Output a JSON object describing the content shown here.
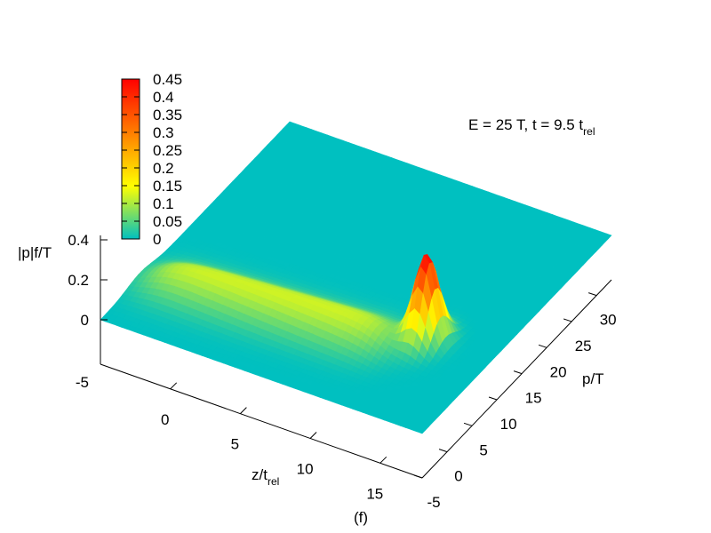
{
  "chart_data": {
    "type": "surface",
    "annotation": {
      "main": "E = 25 T, t = 9.5 t",
      "sub": "rel"
    },
    "panel_label": "(f)",
    "zlabel": "|p|f/T",
    "xlabel": {
      "main": "z/t",
      "sub": "rel"
    },
    "ylabel": "p/T",
    "xlim": [
      -5,
      18
    ],
    "ylim": [
      -5,
      33
    ],
    "zlim": [
      -5,
      0.45
    ],
    "x_ticks": [
      0,
      5,
      10,
      15
    ],
    "x_tick_labels": [
      "0",
      "5",
      "10",
      "15"
    ],
    "y_ticks": [
      -5,
      0,
      5,
      10,
      15,
      20,
      25,
      30
    ],
    "y_tick_labels": [
      "-5",
      "0",
      "5",
      "10",
      "15",
      "20",
      "25",
      "30"
    ],
    "z_ticks": [
      0,
      0.2,
      0.4
    ],
    "z_tick_labels": [
      "0",
      "0.2",
      "0.4"
    ],
    "z_floor_label": "-5",
    "colorbar": {
      "range": [
        0,
        0.45
      ],
      "ticks": [
        "0",
        "0.05",
        "0.1",
        "0.15",
        "0.2",
        "0.25",
        "0.3",
        "0.35",
        "0.4",
        "0.45"
      ],
      "colors": [
        "#00c0c0",
        "#ffff00",
        "#ff8000",
        "#ff0000"
      ]
    },
    "surface_features": {
      "plateau": {
        "z_range": [
          -4,
          12
        ],
        "p_center": 4,
        "p_width": 3.5,
        "peak": 0.12
      },
      "peak": {
        "z": 13.5,
        "p": 8.5,
        "value": 0.43
      }
    }
  }
}
